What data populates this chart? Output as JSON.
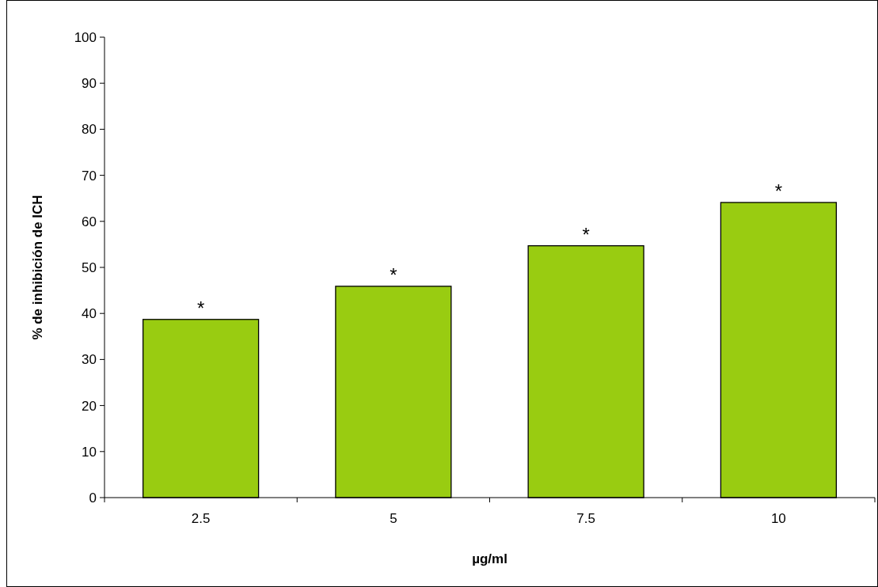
{
  "chart_data": {
    "type": "bar",
    "xlabel": "µg/ml",
    "ylabel": "% de inhibición de ICH",
    "categories": [
      "2.5",
      "5",
      "7.5",
      "10"
    ],
    "values": [
      38.7,
      45.9,
      54.7,
      64.1
    ],
    "color": "#99cc11",
    "ylim": [
      0,
      100
    ],
    "yticks": [
      0,
      10,
      20,
      30,
      40,
      50,
      60,
      70,
      80,
      90,
      100
    ],
    "grid": false,
    "annotations": [
      {
        "text": "*",
        "x": "2.5",
        "y": 38.7
      },
      {
        "text": "*",
        "x": "5",
        "y": 45.9
      },
      {
        "text": "*",
        "x": "7.5",
        "y": 54.7
      },
      {
        "text": "*",
        "x": "10",
        "y": 64.1
      }
    ]
  }
}
